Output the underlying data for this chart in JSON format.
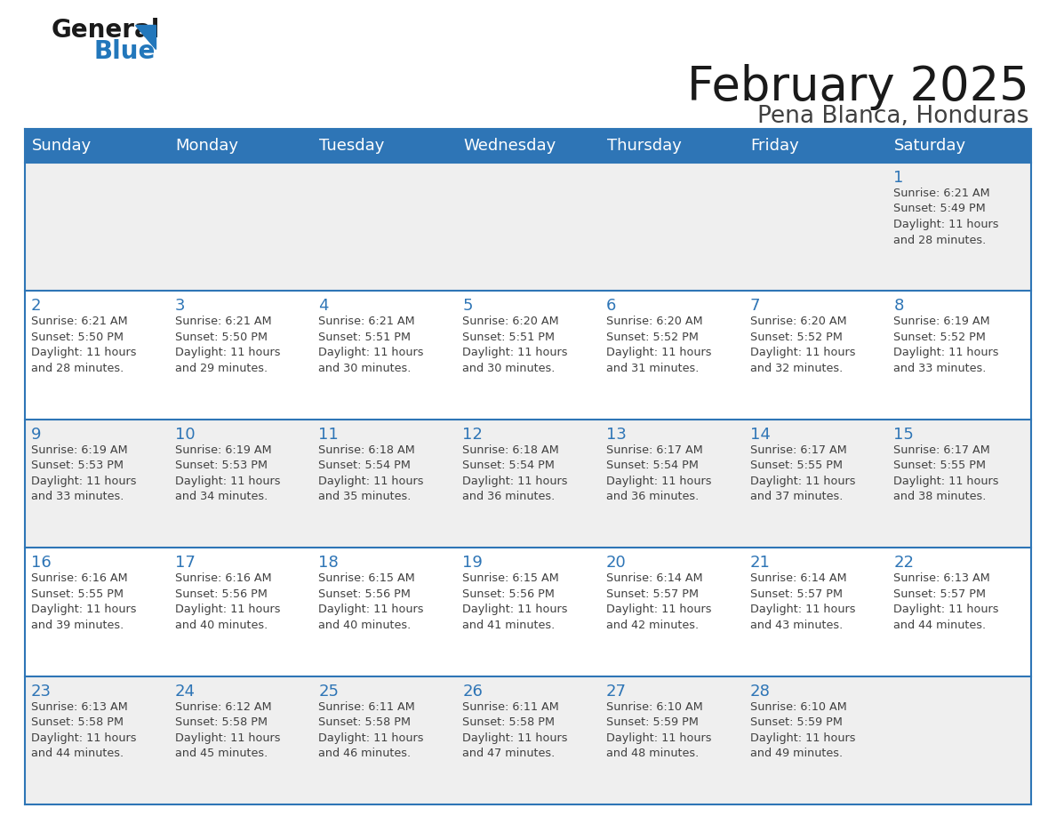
{
  "title": "February 2025",
  "subtitle": "Pena Blanca, Honduras",
  "header_color": "#2E75B6",
  "header_text_color": "#FFFFFF",
  "day_headers": [
    "Sunday",
    "Monday",
    "Tuesday",
    "Wednesday",
    "Thursday",
    "Friday",
    "Saturday"
  ],
  "background_color": "#FFFFFF",
  "cell_bg_odd": "#EFEFEF",
  "cell_bg_even": "#FFFFFF",
  "day_number_color": "#2E75B6",
  "info_text_color": "#404040",
  "border_color": "#2E75B6",
  "logo_general_color": "#1A1A1A",
  "logo_blue_color": "#2277BB",
  "days": [
    {
      "day": 1,
      "col": 6,
      "row": 0,
      "sunrise": "6:21 AM",
      "sunset": "5:49 PM",
      "daylight": "11 hours and 28 minutes."
    },
    {
      "day": 2,
      "col": 0,
      "row": 1,
      "sunrise": "6:21 AM",
      "sunset": "5:50 PM",
      "daylight": "11 hours and 28 minutes."
    },
    {
      "day": 3,
      "col": 1,
      "row": 1,
      "sunrise": "6:21 AM",
      "sunset": "5:50 PM",
      "daylight": "11 hours and 29 minutes."
    },
    {
      "day": 4,
      "col": 2,
      "row": 1,
      "sunrise": "6:21 AM",
      "sunset": "5:51 PM",
      "daylight": "11 hours and 30 minutes."
    },
    {
      "day": 5,
      "col": 3,
      "row": 1,
      "sunrise": "6:20 AM",
      "sunset": "5:51 PM",
      "daylight": "11 hours and 30 minutes."
    },
    {
      "day": 6,
      "col": 4,
      "row": 1,
      "sunrise": "6:20 AM",
      "sunset": "5:52 PM",
      "daylight": "11 hours and 31 minutes."
    },
    {
      "day": 7,
      "col": 5,
      "row": 1,
      "sunrise": "6:20 AM",
      "sunset": "5:52 PM",
      "daylight": "11 hours and 32 minutes."
    },
    {
      "day": 8,
      "col": 6,
      "row": 1,
      "sunrise": "6:19 AM",
      "sunset": "5:52 PM",
      "daylight": "11 hours and 33 minutes."
    },
    {
      "day": 9,
      "col": 0,
      "row": 2,
      "sunrise": "6:19 AM",
      "sunset": "5:53 PM",
      "daylight": "11 hours and 33 minutes."
    },
    {
      "day": 10,
      "col": 1,
      "row": 2,
      "sunrise": "6:19 AM",
      "sunset": "5:53 PM",
      "daylight": "11 hours and 34 minutes."
    },
    {
      "day": 11,
      "col": 2,
      "row": 2,
      "sunrise": "6:18 AM",
      "sunset": "5:54 PM",
      "daylight": "11 hours and 35 minutes."
    },
    {
      "day": 12,
      "col": 3,
      "row": 2,
      "sunrise": "6:18 AM",
      "sunset": "5:54 PM",
      "daylight": "11 hours and 36 minutes."
    },
    {
      "day": 13,
      "col": 4,
      "row": 2,
      "sunrise": "6:17 AM",
      "sunset": "5:54 PM",
      "daylight": "11 hours and 36 minutes."
    },
    {
      "day": 14,
      "col": 5,
      "row": 2,
      "sunrise": "6:17 AM",
      "sunset": "5:55 PM",
      "daylight": "11 hours and 37 minutes."
    },
    {
      "day": 15,
      "col": 6,
      "row": 2,
      "sunrise": "6:17 AM",
      "sunset": "5:55 PM",
      "daylight": "11 hours and 38 minutes."
    },
    {
      "day": 16,
      "col": 0,
      "row": 3,
      "sunrise": "6:16 AM",
      "sunset": "5:55 PM",
      "daylight": "11 hours and 39 minutes."
    },
    {
      "day": 17,
      "col": 1,
      "row": 3,
      "sunrise": "6:16 AM",
      "sunset": "5:56 PM",
      "daylight": "11 hours and 40 minutes."
    },
    {
      "day": 18,
      "col": 2,
      "row": 3,
      "sunrise": "6:15 AM",
      "sunset": "5:56 PM",
      "daylight": "11 hours and 40 minutes."
    },
    {
      "day": 19,
      "col": 3,
      "row": 3,
      "sunrise": "6:15 AM",
      "sunset": "5:56 PM",
      "daylight": "11 hours and 41 minutes."
    },
    {
      "day": 20,
      "col": 4,
      "row": 3,
      "sunrise": "6:14 AM",
      "sunset": "5:57 PM",
      "daylight": "11 hours and 42 minutes."
    },
    {
      "day": 21,
      "col": 5,
      "row": 3,
      "sunrise": "6:14 AM",
      "sunset": "5:57 PM",
      "daylight": "11 hours and 43 minutes."
    },
    {
      "day": 22,
      "col": 6,
      "row": 3,
      "sunrise": "6:13 AM",
      "sunset": "5:57 PM",
      "daylight": "11 hours and 44 minutes."
    },
    {
      "day": 23,
      "col": 0,
      "row": 4,
      "sunrise": "6:13 AM",
      "sunset": "5:58 PM",
      "daylight": "11 hours and 44 minutes."
    },
    {
      "day": 24,
      "col": 1,
      "row": 4,
      "sunrise": "6:12 AM",
      "sunset": "5:58 PM",
      "daylight": "11 hours and 45 minutes."
    },
    {
      "day": 25,
      "col": 2,
      "row": 4,
      "sunrise": "6:11 AM",
      "sunset": "5:58 PM",
      "daylight": "11 hours and 46 minutes."
    },
    {
      "day": 26,
      "col": 3,
      "row": 4,
      "sunrise": "6:11 AM",
      "sunset": "5:58 PM",
      "daylight": "11 hours and 47 minutes."
    },
    {
      "day": 27,
      "col": 4,
      "row": 4,
      "sunrise": "6:10 AM",
      "sunset": "5:59 PM",
      "daylight": "11 hours and 48 minutes."
    },
    {
      "day": 28,
      "col": 5,
      "row": 4,
      "sunrise": "6:10 AM",
      "sunset": "5:59 PM",
      "daylight": "11 hours and 49 minutes."
    }
  ],
  "num_rows": 5,
  "num_cols": 7,
  "title_fontsize": 38,
  "subtitle_fontsize": 19,
  "header_fontsize": 13,
  "day_num_fontsize": 13,
  "info_fontsize": 9.2
}
